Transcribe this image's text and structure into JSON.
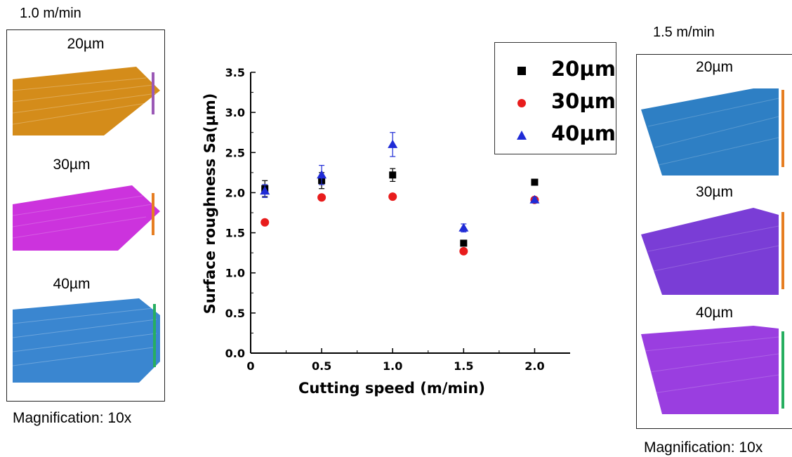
{
  "left_panel": {
    "speed": "1.0 m/min",
    "samples": [
      {
        "label": "20µm",
        "color": "#d48c1a"
      },
      {
        "label": "30µm",
        "color": "#cc33dd"
      },
      {
        "label": "40µm",
        "color": "#3a86d0"
      }
    ],
    "magnification": "Magnification:  10x"
  },
  "right_panel": {
    "speed": "1.5 m/min",
    "samples": [
      {
        "label": "20µm",
        "color": "#2e7fc4"
      },
      {
        "label": "30µm",
        "color": "#7a3dd6"
      },
      {
        "label": "40µm",
        "color": "#9a3ee0"
      }
    ],
    "magnification": "Magnification: 10x"
  },
  "chart_data": {
    "type": "scatter",
    "xlabel": "Cutting speed (m/min)",
    "ylabel": "Surface roughness Sa(µm)",
    "xlim": [
      0,
      2.25
    ],
    "ylim": [
      0,
      3.5
    ],
    "x_ticks": [
      "0",
      "0.5",
      "1.0",
      "1.5",
      "2.0"
    ],
    "y_ticks": [
      "0.0",
      "0.5",
      "1.0",
      "1.5",
      "2.0",
      "2.5",
      "3.0",
      "3.5"
    ],
    "legend_position": "top-right",
    "series": [
      {
        "name": "20µm",
        "marker": "square",
        "color": "#000000",
        "x": [
          0.1,
          0.5,
          1.0,
          1.5,
          2.0
        ],
        "y": [
          2.05,
          2.15,
          2.22,
          1.37,
          2.13
        ],
        "err": [
          0.1,
          0.1,
          0.08,
          0.0,
          0.0
        ]
      },
      {
        "name": "30µm",
        "marker": "circle",
        "color": "#e81c1c",
        "x": [
          0.1,
          0.5,
          1.0,
          1.5,
          2.0
        ],
        "y": [
          1.63,
          1.94,
          1.95,
          1.27,
          1.91
        ],
        "err": [
          0.0,
          0.03,
          0.03,
          0.0,
          0.0
        ]
      },
      {
        "name": "40µm",
        "marker": "triangle",
        "color": "#1f2bd6",
        "x": [
          0.1,
          0.5,
          1.0,
          1.5,
          2.0
        ],
        "y": [
          2.02,
          2.22,
          2.6,
          1.56,
          1.91
        ],
        "err": [
          0.08,
          0.12,
          0.15,
          0.05,
          0.03
        ]
      }
    ]
  }
}
